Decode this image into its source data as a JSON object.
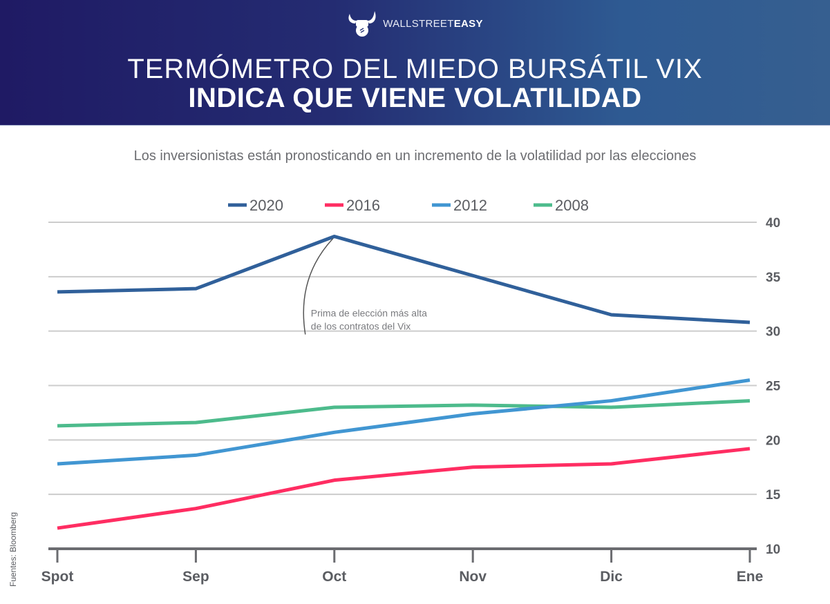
{
  "header": {
    "brand_light": "WALLSTREET",
    "brand_bold": "EASY",
    "logo_icon": "bull-horns-fist-icon",
    "title_line1": "TERMÓMETRO DEL MIEDO BURSÁTIL VIX",
    "title_line2": "INDICA QUE VIENE VOLATILIDAD"
  },
  "subtitle": "Los inversionistas están pronosticando en un incremento de la volatilidad por las elecciones",
  "source": "Fuentes: Bloomberg",
  "colors": {
    "header_start": "#1f1a64",
    "header_end": "#365f90",
    "s2020": "#30609a",
    "s2016": "#ff2d62",
    "s2012": "#4196d2",
    "s2008": "#4dbb8c",
    "axis": "#6b6c70",
    "grid": "#cccccc"
  },
  "chart_data": {
    "type": "line",
    "title": "Termómetro del miedo bursátil VIX indica que viene volatilidad",
    "subtitle": "Los inversionistas están pronosticando en un incremento de la volatilidad por las elecciones",
    "xlabel": "",
    "ylabel": "",
    "categories": [
      "Spot",
      "Sep",
      "Oct",
      "Nov",
      "Dic",
      "Ene"
    ],
    "ylim": [
      10,
      40
    ],
    "yticks": [
      10,
      15,
      20,
      25,
      30,
      35,
      40
    ],
    "y_axis_side": "right",
    "grid": true,
    "legend_position": "top-center",
    "series": [
      {
        "name": "2020",
        "color": "#30609a",
        "values": [
          33.6,
          33.9,
          38.7,
          35.1,
          31.5,
          30.8
        ]
      },
      {
        "name": "2016",
        "color": "#ff2d62",
        "values": [
          11.9,
          13.7,
          16.3,
          17.5,
          17.8,
          19.2
        ]
      },
      {
        "name": "2012",
        "color": "#4196d2",
        "values": [
          17.8,
          18.6,
          20.7,
          22.4,
          23.6,
          25.5
        ]
      },
      {
        "name": "2008",
        "color": "#4dbb8c",
        "values": [
          21.3,
          21.6,
          23.0,
          23.2,
          23.0,
          23.6
        ]
      }
    ],
    "annotations": [
      {
        "text_line1": "Prima de elección más alta",
        "text_line2": "de los contratos del Vix",
        "series": "2020",
        "category": "Oct"
      }
    ]
  }
}
